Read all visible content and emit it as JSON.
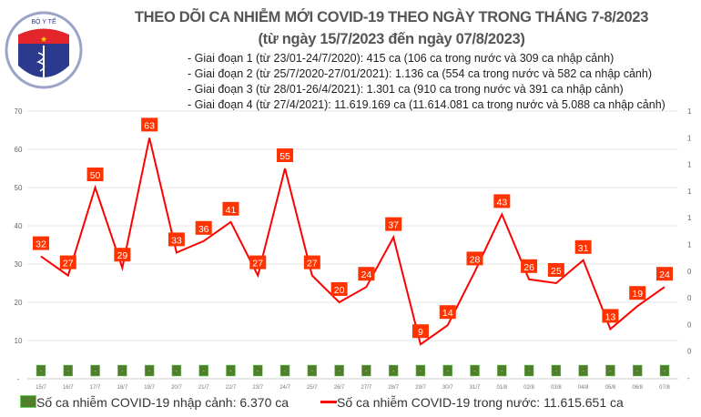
{
  "header": {
    "logo_text": "BỘ Y TẾ - MINISTRY OF HEALTH",
    "title": "THEO DÕI CA NHIỄM MỚI COVID-19 THEO NGÀY TRONG THÁNG 7-8/2023",
    "subtitle": "(từ ngày 15/7/2023 đến ngày 07/8/2023)",
    "bullets": [
      "- Giai đoạn 1 (từ 23/01-24/7/2020): 415 ca (106 ca trong nước và 309 ca nhập cảnh)",
      "- Giai đoạn 2 (từ 25/7/2020-27/01/2021): 1.136 ca (554 ca trong nước và 582 ca nhập cảnh)",
      "- Giai đoạn 3 (từ 28/01-26/4/2021): 1.301 ca (910 ca trong nước và 391 ca nhập cảnh)",
      "- Giai đoạn 4 (từ 27/4/2021): 11.619.169 ca (11.614.081 ca trong nước và 5.088 ca nhập cảnh)"
    ]
  },
  "chart_data": {
    "type": "bar+line",
    "categories": [
      "15/7",
      "16/7",
      "17/7",
      "18/7",
      "19/7",
      "20/7",
      "21/7",
      "22/7",
      "23/7",
      "24/7",
      "25/7",
      "26/7",
      "27/7",
      "28/7",
      "29/7",
      "30/7",
      "31/7",
      "01/8",
      "02/8",
      "03/8",
      "04/8",
      "05/8",
      "06/8",
      "07/8"
    ],
    "series": [
      {
        "name": "Số ca nhiễm COVID-19 nhập cảnh: 6.370 ca",
        "type": "bar",
        "axis": "right",
        "values": [
          0,
          0,
          0,
          0,
          0,
          0,
          0,
          0,
          0,
          0,
          0,
          0,
          0,
          0,
          0,
          0,
          0,
          0,
          0,
          0,
          0,
          0,
          0,
          0
        ],
        "data_label": "-",
        "color": "#4f7f2a"
      },
      {
        "name": "Số ca nhiễm COVID-19 trong nước: 11.615.651 ca",
        "type": "line",
        "axis": "left",
        "values": [
          32,
          27,
          50,
          29,
          63,
          33,
          36,
          41,
          27,
          55,
          27,
          20,
          24,
          37,
          9,
          14,
          28,
          43,
          26,
          25,
          31,
          13,
          19,
          24
        ],
        "color": "#ff0000"
      }
    ],
    "left_axis": {
      "ticks": [
        "-",
        "10",
        "20",
        "30",
        "40",
        "50",
        "60",
        "70"
      ],
      "ylim": [
        0,
        70
      ]
    },
    "right_axis": {
      "ticks": [
        "-",
        "0",
        "0",
        "0",
        "0",
        "1",
        "1",
        "1",
        "1",
        "1",
        "1"
      ]
    },
    "grid": true,
    "legend": "bottom"
  }
}
